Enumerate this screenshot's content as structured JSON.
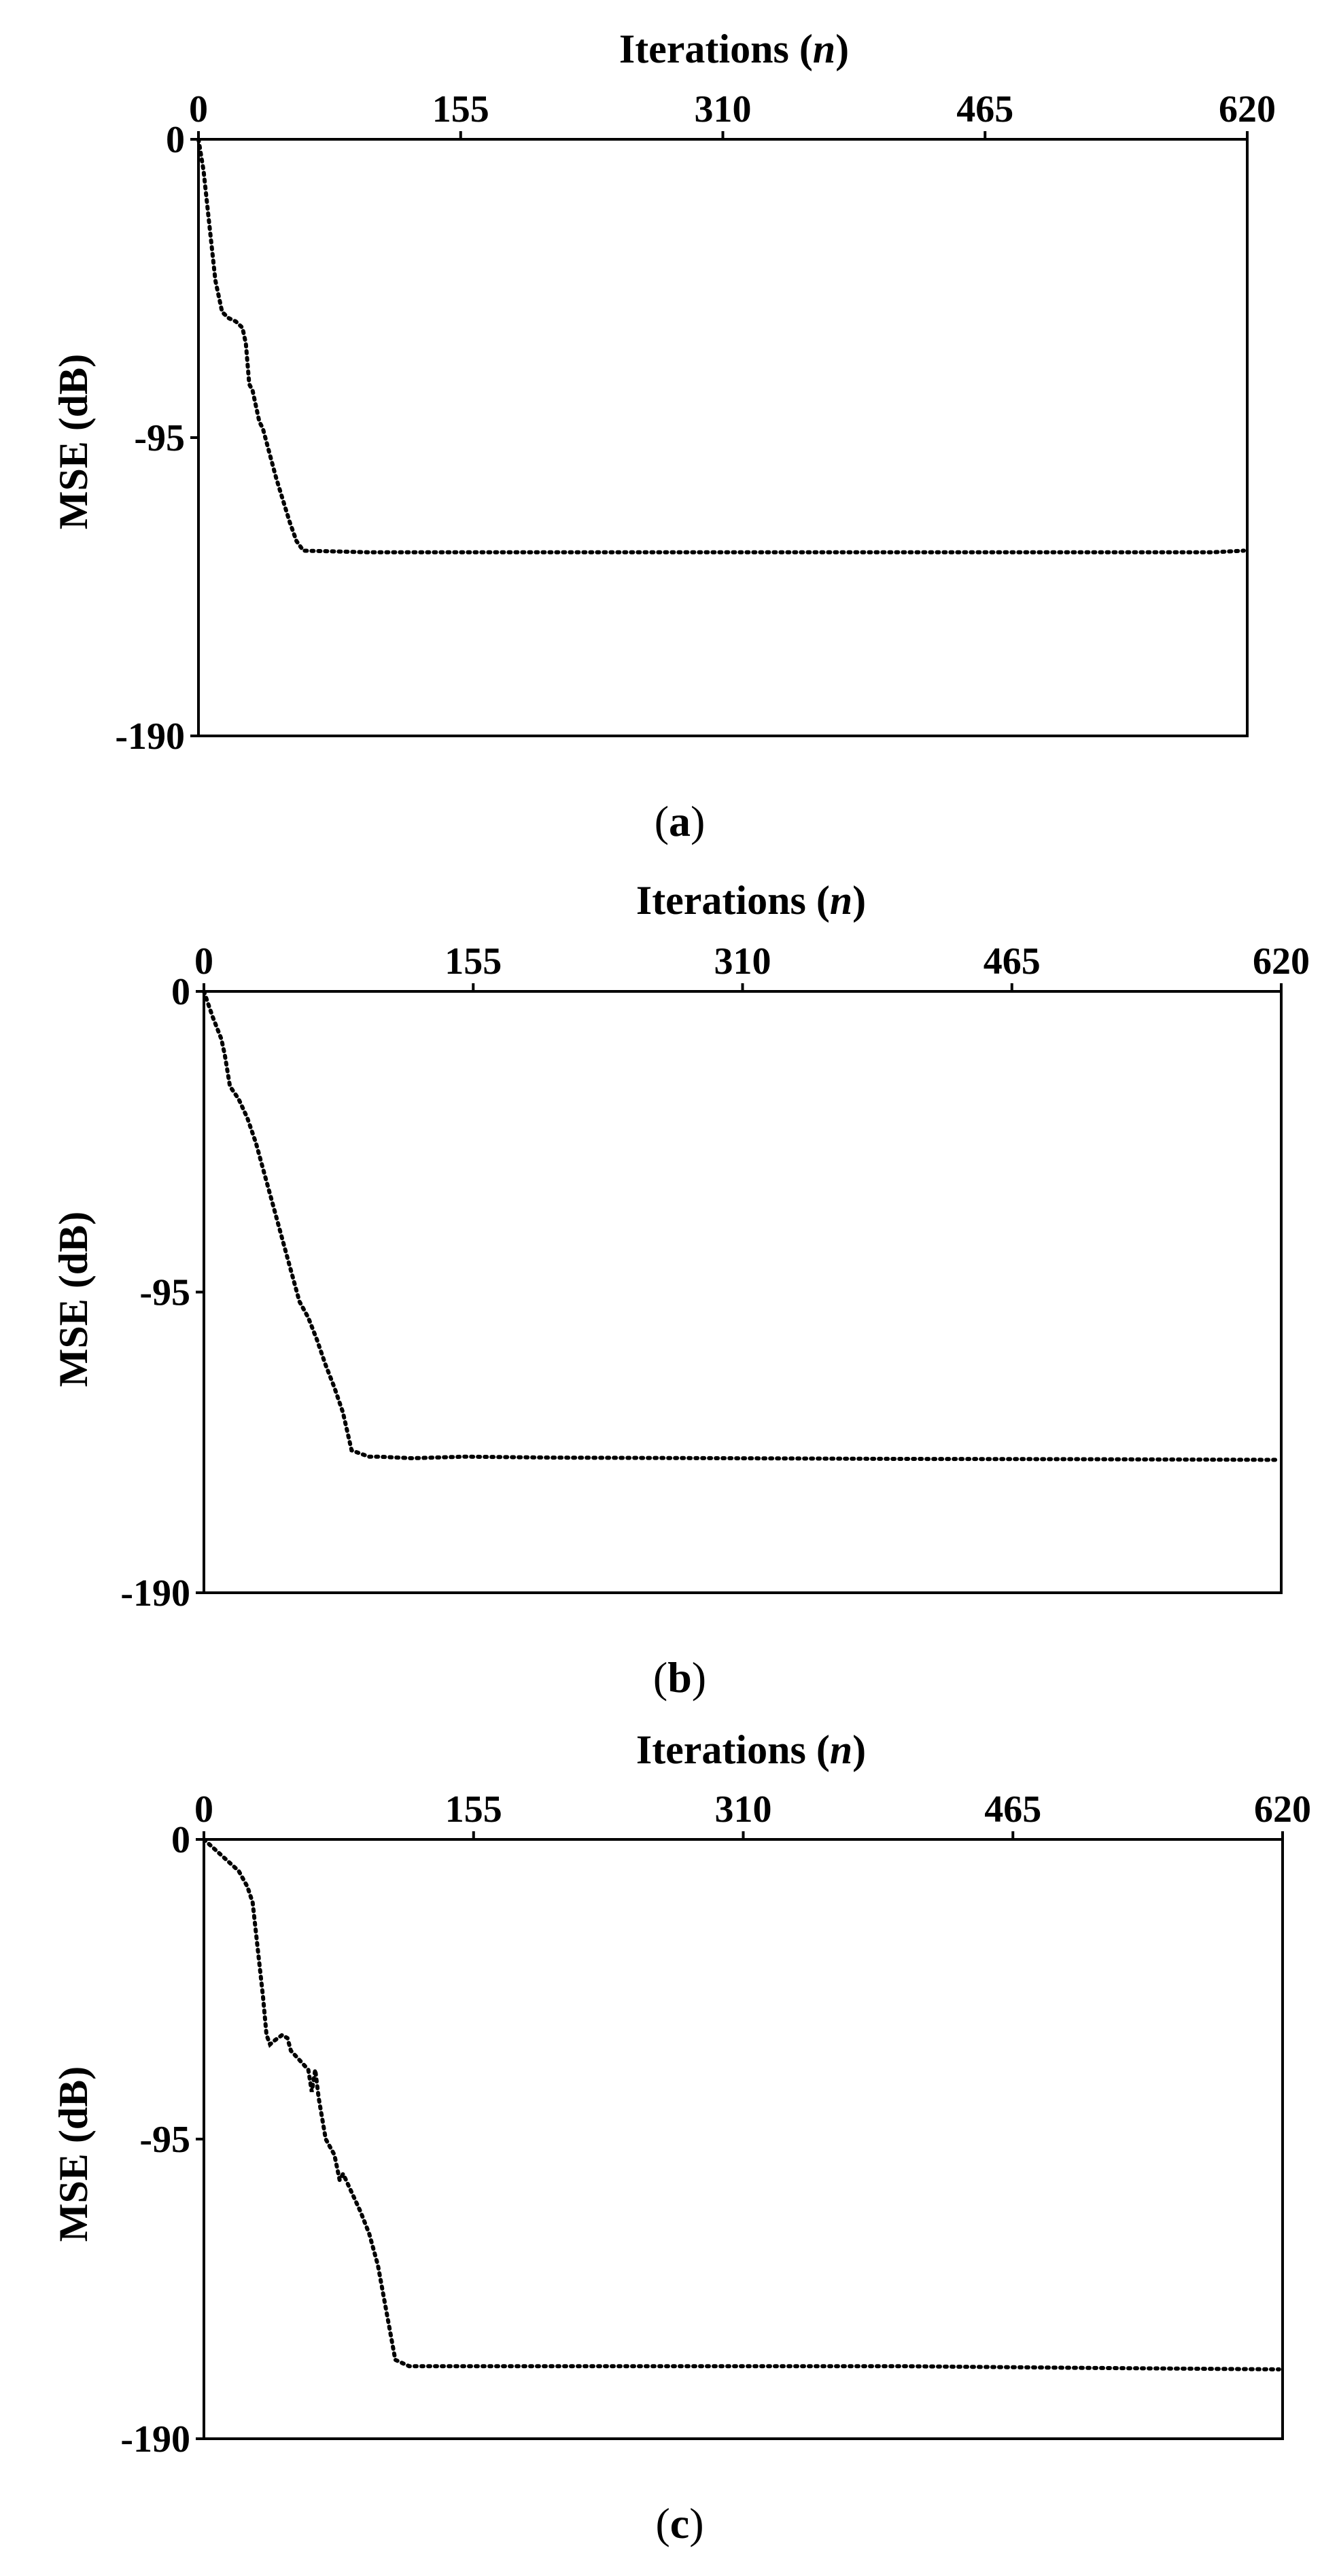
{
  "chart_data": [
    {
      "type": "line",
      "caption_letter": "a",
      "xlabel": "Iterations",
      "xlabel_var": "n",
      "ylabel": "MSE (dB)",
      "xlim": [
        0,
        620
      ],
      "ylim": [
        -190,
        0
      ],
      "x_axis_position": "top",
      "grid": false,
      "xticks": [
        0,
        155,
        310,
        465,
        620
      ],
      "yticks": [
        0,
        -95,
        -190
      ],
      "series": [
        {
          "x": [
            0,
            3,
            6,
            10,
            14,
            18,
            22,
            26,
            28,
            30,
            32,
            34,
            36,
            38,
            42,
            46,
            50,
            54,
            58,
            62,
            100,
            200,
            300,
            400,
            500,
            600,
            618
          ],
          "y": [
            0,
            -10,
            -25,
            -45,
            -55,
            -57,
            -58,
            -60,
            -65,
            -78,
            -80,
            -85,
            -90,
            -92,
            -100,
            -108,
            -115,
            -122,
            -128,
            -131,
            -131.5,
            -131.5,
            -131.5,
            -131.5,
            -131.5,
            -131.5,
            -131
          ]
        }
      ]
    },
    {
      "type": "line",
      "caption_letter": "b",
      "xlabel": "Iterations",
      "xlabel_var": "n",
      "ylabel": "MSE (dB)",
      "xlim": [
        0,
        620
      ],
      "ylim": [
        -190,
        0
      ],
      "x_axis_position": "top",
      "grid": false,
      "xticks": [
        0,
        155,
        310,
        465,
        620
      ],
      "yticks": [
        0,
        -95,
        -190
      ],
      "series": [
        {
          "x": [
            0,
            5,
            10,
            12,
            15,
            20,
            25,
            30,
            35,
            40,
            45,
            50,
            55,
            60,
            65,
            70,
            75,
            80,
            85,
            90,
            95,
            100,
            120,
            150,
            200,
            300,
            400,
            500,
            618
          ],
          "y": [
            0,
            -8,
            -15,
            -20,
            -30,
            -34,
            -40,
            -48,
            -58,
            -68,
            -78,
            -88,
            -98,
            -103,
            -110,
            -118,
            -125,
            -133,
            -145,
            -146,
            -147,
            -147,
            -147.5,
            -147,
            -147.3,
            -147.5,
            -147.7,
            -147.8,
            -148
          ]
        }
      ]
    },
    {
      "type": "line",
      "caption_letter": "c",
      "xlabel": "Iterations",
      "xlabel_var": "n",
      "ylabel": "MSE (dB)",
      "xlim": [
        0,
        620
      ],
      "ylim": [
        -190,
        0
      ],
      "x_axis_position": "top",
      "grid": false,
      "xticks": [
        0,
        155,
        310,
        465,
        620
      ],
      "yticks": [
        0,
        -95,
        -190
      ],
      "series": [
        {
          "x": [
            0,
            10,
            20,
            25,
            28,
            30,
            32,
            34,
            36,
            38,
            40,
            45,
            48,
            50,
            55,
            60,
            62,
            64,
            66,
            70,
            75,
            78,
            80,
            85,
            90,
            95,
            100,
            105,
            110,
            118,
            120,
            200,
            300,
            400,
            500,
            618
          ],
          "y": [
            0,
            -5,
            -10,
            -15,
            -20,
            -30,
            -40,
            -50,
            -62,
            -65,
            -64,
            -62,
            -63,
            -67,
            -70,
            -73,
            -80,
            -73,
            -82,
            -95,
            -100,
            -108,
            -106,
            -112,
            -118,
            -125,
            -135,
            -150,
            -165,
            -167,
            -167,
            -167,
            -167,
            -167,
            -167.5,
            -168
          ]
        }
      ]
    }
  ]
}
